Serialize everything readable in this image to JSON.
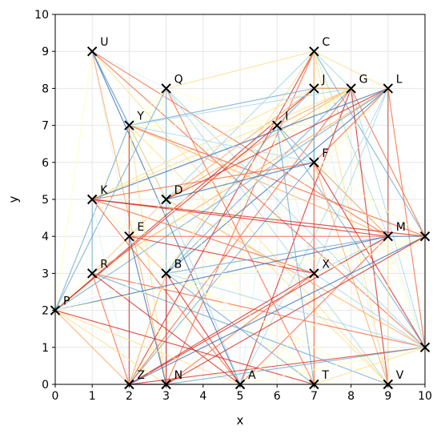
{
  "chart_data": {
    "type": "scatter",
    "title": "",
    "xlabel": "x",
    "ylabel": "y",
    "xlim": [
      0,
      10
    ],
    "ylim": [
      0,
      10
    ],
    "xticks": [
      "0",
      "1",
      "2",
      "3",
      "4",
      "5",
      "6",
      "7",
      "8",
      "9",
      "10"
    ],
    "yticks": [
      "0",
      "1",
      "2",
      "3",
      "4",
      "5",
      "6",
      "7",
      "8",
      "9",
      "10"
    ],
    "grid": true,
    "marker": "x",
    "points": [
      {
        "label": "U",
        "x": 1,
        "y": 9
      },
      {
        "label": "C",
        "x": 7,
        "y": 9
      },
      {
        "label": "Q",
        "x": 3,
        "y": 8
      },
      {
        "label": "J",
        "x": 7,
        "y": 8
      },
      {
        "label": "G",
        "x": 8,
        "y": 8
      },
      {
        "label": "L",
        "x": 9,
        "y": 8
      },
      {
        "label": "Y",
        "x": 2,
        "y": 7
      },
      {
        "label": "I",
        "x": 6,
        "y": 7
      },
      {
        "label": "F",
        "x": 7,
        "y": 6
      },
      {
        "label": "K",
        "x": 1,
        "y": 5
      },
      {
        "label": "D",
        "x": 3,
        "y": 5
      },
      {
        "label": "E",
        "x": 2,
        "y": 4
      },
      {
        "label": "M",
        "x": 9,
        "y": 4
      },
      {
        "label": "R",
        "x": 1,
        "y": 3
      },
      {
        "label": "B",
        "x": 3,
        "y": 3
      },
      {
        "label": "X",
        "x": 7,
        "y": 3
      },
      {
        "label": "P",
        "x": 0,
        "y": 2
      },
      {
        "label": "Z",
        "x": 2,
        "y": 0
      },
      {
        "label": "N",
        "x": 3,
        "y": 0
      },
      {
        "label": "A",
        "x": 5,
        "y": 0
      },
      {
        "label": "T",
        "x": 7,
        "y": 0
      },
      {
        "label": "V",
        "x": 9,
        "y": 0
      },
      {
        "label": "",
        "x": 10,
        "y": 4
      },
      {
        "label": "",
        "x": 10,
        "y": 1
      }
    ],
    "edge_colors": [
      "#d73027",
      "#f46d43",
      "#fdae61",
      "#fee090",
      "#ffffbf",
      "#e0f3f8",
      "#abd9e9",
      "#74add1",
      "#4575b4"
    ]
  }
}
